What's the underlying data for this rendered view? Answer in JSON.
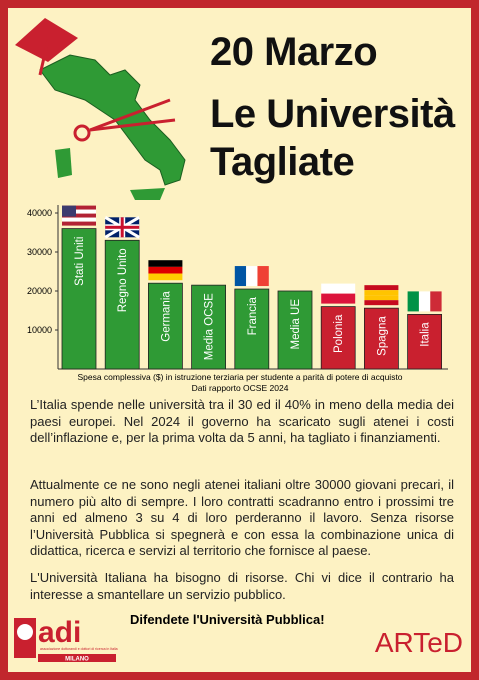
{
  "header": {
    "title_lines": [
      "20 Marzo",
      "Le Università",
      "Tagliate"
    ]
  },
  "chart_data": {
    "type": "bar",
    "categories": [
      "Stati Uniti",
      "Regno Unito",
      "Germania",
      "Media OCSE",
      "Francia",
      "Media UE",
      "Polonia",
      "Spagna",
      "Italia"
    ],
    "values": [
      36000,
      33000,
      22000,
      21500,
      20500,
      20000,
      16000,
      15600,
      14000
    ],
    "colors": [
      "#2f9a35",
      "#2f9a35",
      "#2f9a35",
      "#2f9a35",
      "#2f9a35",
      "#2f9a35",
      "#c9202f",
      "#c9202f",
      "#c9202f"
    ],
    "ylim": [
      0,
      40000
    ],
    "yticks": [
      10000,
      20000,
      30000,
      40000
    ],
    "caption": [
      "Spesa complessiva ($) in istruzione terziaria per studente a parità di potere di acquisto",
      "Dati rapporto OCSE 2024"
    ]
  },
  "body": {
    "paragraphs": [
      "L’Italia spende nelle università tra il 30 ed il 40% in meno della media dei paesi europei. Nel 2024 il governo ha scaricato sugli atenei i costi dell’inflazione e, per la prima volta da 5 anni, ha tagliato i finanziamenti.",
      "Attualmente ce ne sono negli atenei italiani oltre 30000 giovani precari, il numero più alto di sempre. I loro contratti scadranno entro i prossimi tre anni ed almeno 3 su 4 di loro perderanno il lavoro. Senza risorse l’Università Pubblica si spegnerà e con essa  la combinazione unica di didattica, ricerca e servizi al territorio che fornisce al paese.",
      "L'Università Italiana ha bisogno di risorse. Chi vi dice il contrario ha interesse a smantellare un servizio pubblico."
    ],
    "slogan": "Difendete l'Università Pubblica!"
  },
  "footer": {
    "logo_left": "adi",
    "logo_left_sub": "associazione dottorandi e dottori di ricerca in Italia",
    "logo_left_city": "MILANO",
    "logo_right": "ARTeD"
  }
}
